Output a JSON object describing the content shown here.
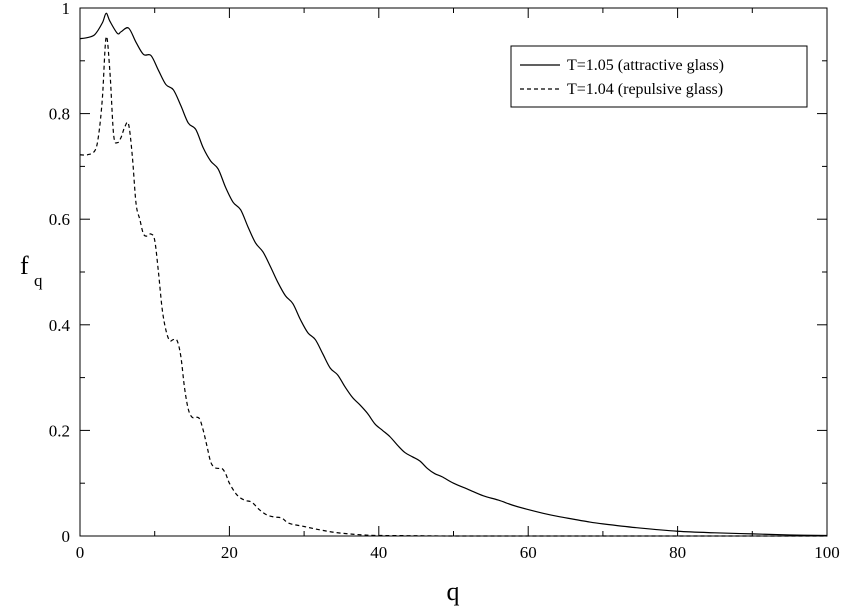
{
  "chart_data": {
    "type": "line",
    "title": "",
    "xlabel": "q",
    "ylabel": {
      "main": "f",
      "sub": "q"
    },
    "xlim": [
      0,
      100
    ],
    "ylim": [
      0,
      1
    ],
    "xticks": [
      0,
      20,
      40,
      60,
      80,
      100
    ],
    "yticks": [
      0,
      0.2,
      0.4,
      0.6,
      0.8,
      1
    ],
    "xtick_labels": [
      "0",
      "20",
      "40",
      "60",
      "80",
      "100"
    ],
    "ytick_labels": [
      "0",
      "0.2",
      "0.4",
      "0.6",
      "0.8",
      "1"
    ],
    "grid": false,
    "legend_position": "top-right",
    "series": [
      {
        "name": "T=1.05 (attractive glass)",
        "style": "solid",
        "color": "#000000",
        "x": [
          0,
          1,
          2,
          3,
          3.5,
          4,
          5,
          5.5,
          6.5,
          7.5,
          8.5,
          9.5,
          10.5,
          11.5,
          12.5,
          13.5,
          14.5,
          15.5,
          16.5,
          17.5,
          18.5,
          19.5,
          20.5,
          21.5,
          22.5,
          23.5,
          24.5,
          25.5,
          26.5,
          27.5,
          28.5,
          29.5,
          30.5,
          31.5,
          32.5,
          33.5,
          34.5,
          35.5,
          36.5,
          37.5,
          38.5,
          39.5,
          40.5,
          41.5,
          42.5,
          43.5,
          44.5,
          45.5,
          46.5,
          47.5,
          48.5,
          50,
          52,
          54,
          56,
          58,
          60,
          62,
          64,
          66,
          68,
          70,
          75,
          80,
          85,
          90,
          95,
          100
        ],
        "y": [
          0.942,
          0.944,
          0.95,
          0.972,
          0.99,
          0.975,
          0.952,
          0.955,
          0.962,
          0.935,
          0.912,
          0.91,
          0.882,
          0.855,
          0.845,
          0.815,
          0.782,
          0.77,
          0.735,
          0.71,
          0.695,
          0.66,
          0.632,
          0.618,
          0.585,
          0.555,
          0.538,
          0.51,
          0.48,
          0.455,
          0.44,
          0.41,
          0.385,
          0.372,
          0.345,
          0.318,
          0.305,
          0.282,
          0.262,
          0.248,
          0.232,
          0.212,
          0.2,
          0.188,
          0.172,
          0.158,
          0.15,
          0.142,
          0.128,
          0.118,
          0.112,
          0.1,
          0.088,
          0.076,
          0.068,
          0.058,
          0.05,
          0.043,
          0.037,
          0.032,
          0.027,
          0.023,
          0.015,
          0.009,
          0.006,
          0.004,
          0.002,
          0.001
        ]
      },
      {
        "name": "T=1.04 (repulsive glass)",
        "style": "dashed",
        "color": "#000000",
        "x": [
          0,
          1,
          2,
          2.5,
          3,
          3.5,
          4,
          4.5,
          5,
          5.5,
          6,
          6.5,
          7,
          7.5,
          8,
          8.5,
          9,
          9.5,
          10,
          10.5,
          11,
          11.5,
          12,
          12.5,
          13,
          13.5,
          14,
          14.5,
          15,
          15.5,
          16,
          16.5,
          17,
          17.5,
          18,
          18.5,
          19,
          19.5,
          20,
          21,
          22,
          23,
          24,
          25,
          26,
          27,
          28,
          30,
          32,
          34,
          36,
          38,
          40,
          45,
          50,
          60,
          70,
          80,
          90,
          100
        ],
        "y": [
          0.722,
          0.722,
          0.73,
          0.76,
          0.83,
          0.945,
          0.88,
          0.76,
          0.745,
          0.755,
          0.775,
          0.78,
          0.72,
          0.63,
          0.6,
          0.572,
          0.568,
          0.572,
          0.56,
          0.5,
          0.43,
          0.39,
          0.37,
          0.372,
          0.37,
          0.34,
          0.28,
          0.24,
          0.225,
          0.225,
          0.222,
          0.2,
          0.17,
          0.14,
          0.13,
          0.128,
          0.128,
          0.118,
          0.1,
          0.078,
          0.068,
          0.064,
          0.05,
          0.04,
          0.036,
          0.034,
          0.024,
          0.018,
          0.012,
          0.007,
          0.004,
          0.002,
          0.001,
          0.0005,
          0,
          0,
          0,
          0,
          0,
          0
        ]
      }
    ]
  }
}
